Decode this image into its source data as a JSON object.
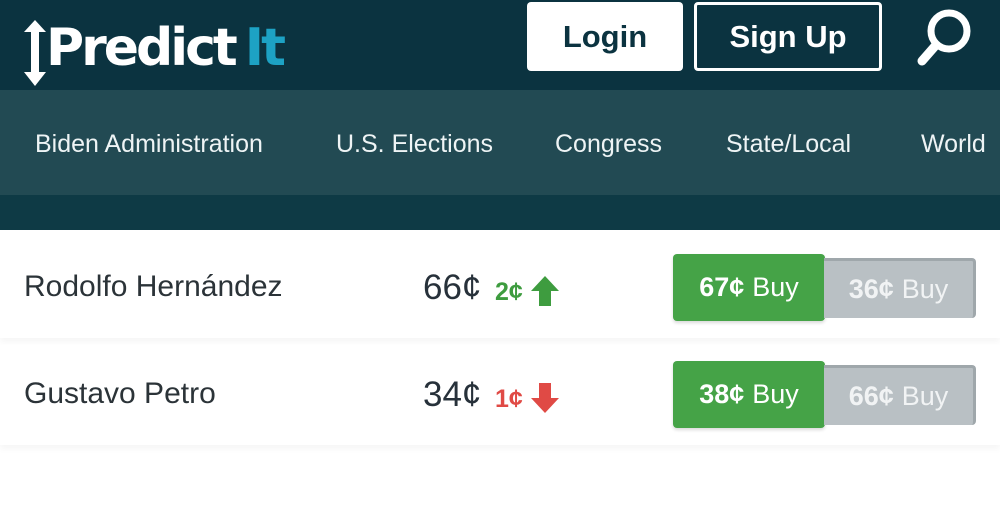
{
  "header": {
    "logo_text_main": "Predict",
    "logo_text_accent": "It",
    "login_label": "Login",
    "signup_label": "Sign Up",
    "search_icon": "search-icon"
  },
  "nav": {
    "items": [
      {
        "label": "Biden Administration"
      },
      {
        "label": "U.S. Elections"
      },
      {
        "label": "Congress"
      },
      {
        "label": "State/Local"
      },
      {
        "label": "World"
      }
    ]
  },
  "colors": {
    "header": "#0b3340",
    "nav": "#224a53",
    "accent": "#1da2c4",
    "buy_yes": "#45a347",
    "buy_no": "#b9c0c4",
    "up": "#3e9c3f",
    "down": "#e04a45"
  },
  "contracts": [
    {
      "name": "Rodolfo Hernández",
      "price": "66¢",
      "change": "2¢",
      "direction": "up",
      "yes_price": "67¢",
      "yes_label": "Buy",
      "no_price": "36¢",
      "no_label": "Buy"
    },
    {
      "name": "Gustavo Petro",
      "price": "34¢",
      "change": "1¢",
      "direction": "down",
      "yes_price": "38¢",
      "yes_label": "Buy",
      "no_price": "66¢",
      "no_label": "Buy"
    }
  ]
}
